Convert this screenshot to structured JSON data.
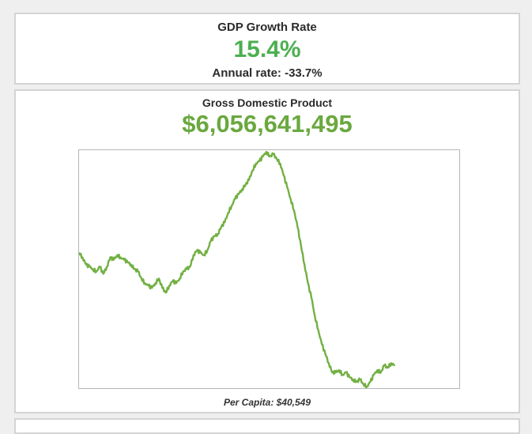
{
  "growth": {
    "title": "GDP Growth Rate",
    "value": "15.4%",
    "annual_label": "Annual rate: -33.7%"
  },
  "gdp": {
    "title": "Gross Domestic Product",
    "value": "$6,056,641,495",
    "per_capita": "Per Capita: $40,549"
  },
  "colors": {
    "accent_green": "#4caf50",
    "gdp_green": "#6aa83f",
    "line_green": "#72b043"
  },
  "chart_data": {
    "type": "line",
    "title": "",
    "xlabel": "",
    "ylabel": "",
    "grid": false,
    "legend": "none",
    "ylim": [
      0,
      100
    ],
    "series": [
      {
        "values": [
          57,
          55,
          52,
          51,
          50,
          49,
          51,
          48,
          51,
          55,
          54,
          56,
          55,
          54,
          53,
          52,
          50,
          49,
          46,
          44,
          43,
          42,
          44,
          46,
          42,
          40,
          43,
          45,
          44,
          46,
          49,
          50,
          51,
          56,
          58,
          57,
          56,
          58,
          62,
          64,
          65,
          68,
          70,
          74,
          77,
          80,
          82,
          84,
          86,
          88,
          92,
          95,
          96,
          98,
          100,
          98,
          99,
          97,
          95,
          90,
          85,
          80,
          75,
          68,
          60,
          52,
          44,
          38,
          30,
          24,
          18,
          14,
          10,
          6,
          6,
          7,
          5,
          6,
          4,
          3,
          2,
          3,
          1,
          0,
          2,
          5,
          7,
          6,
          9,
          8,
          10,
          9
        ]
      }
    ]
  }
}
